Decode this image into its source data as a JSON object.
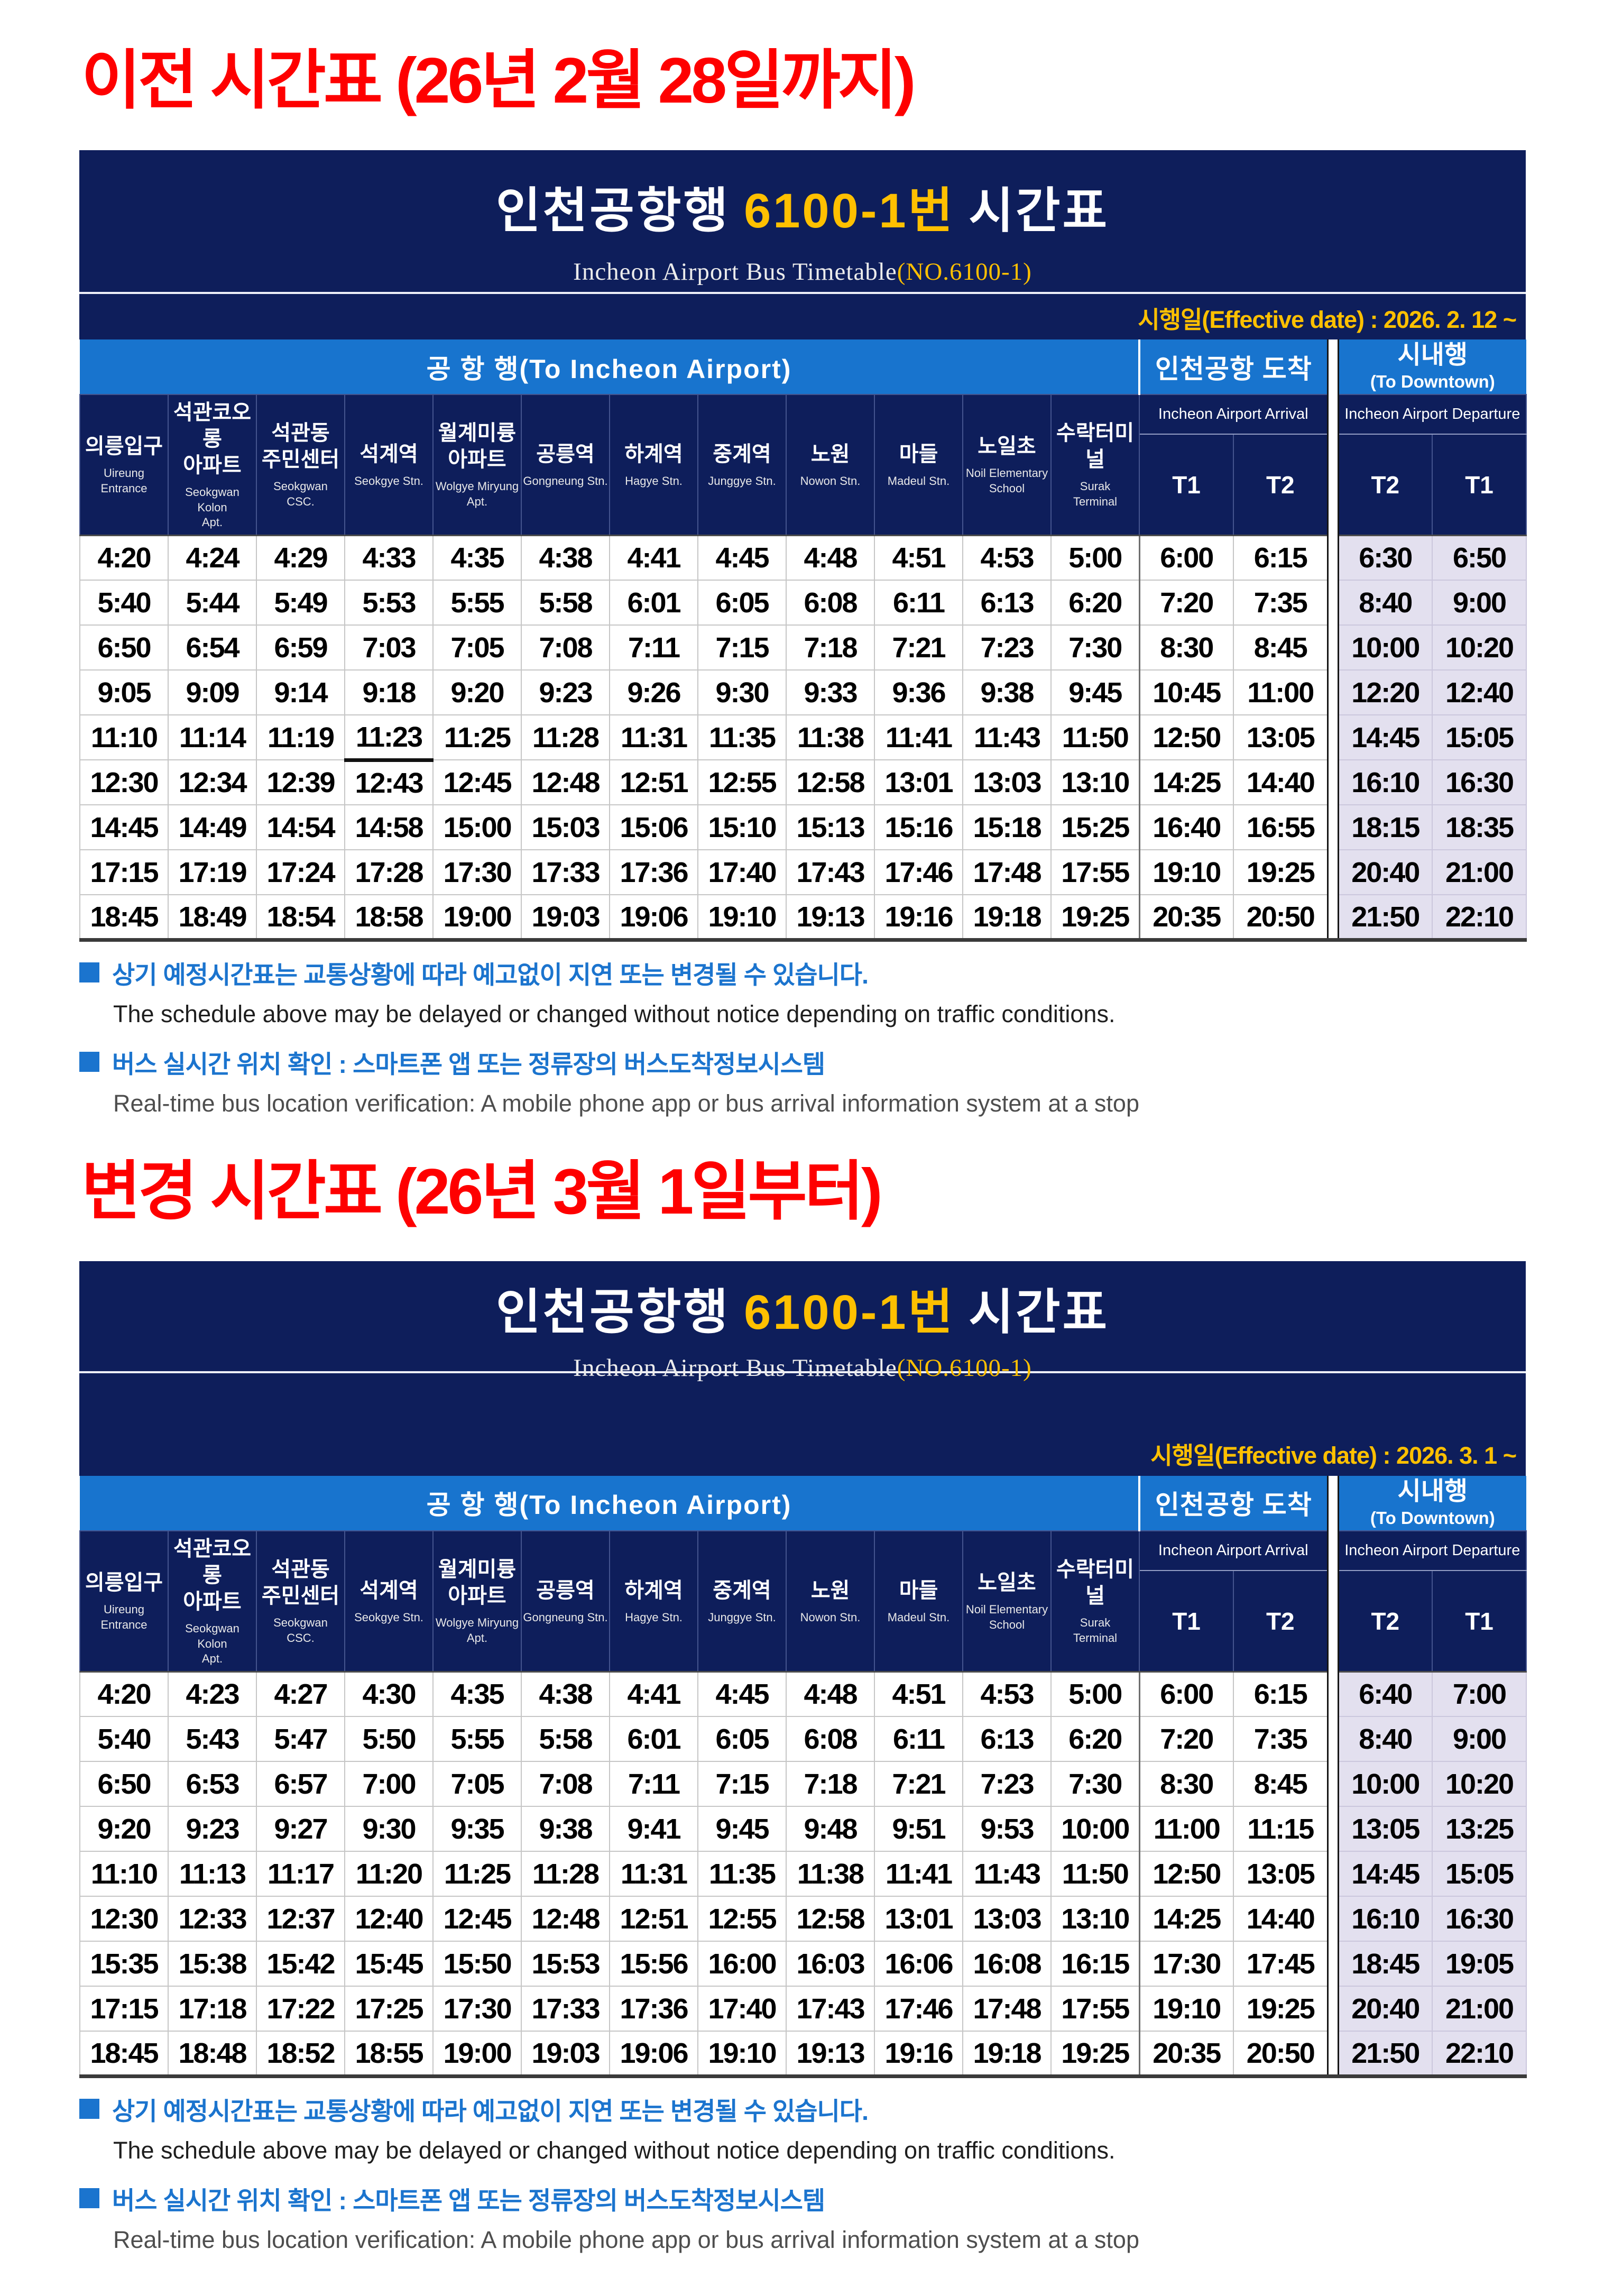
{
  "colors": {
    "navy_header": "#0e1e5b",
    "blue_band": "#1874ce",
    "accent_gold": "#ffc000",
    "heading_red": "#fe0000",
    "departure_cell_lavender": "#e3e0ef",
    "note_blue": "#1b74ce"
  },
  "sections": [
    {
      "heading": "이전 시간표 (26년 2월 28일까지)",
      "table": {
        "title_prefix": "인천공항행",
        "title_route": "6100-1번",
        "title_suffix": "시간표",
        "subtitle_text": "Incheon Airport Bus Timetable",
        "subtitle_route": "(NO.6100-1)",
        "effective_date": "시행일(Effective date) : 2026. 2. 12 ~",
        "group_airport": "공 항 행(To Incheon Airport)",
        "group_arrival": "인천공항 도착",
        "group_downtown_kr": "시내행",
        "group_downtown_en": "(To Downtown)",
        "arrival_label": "Incheon Airport Arrival",
        "departure_label": "Incheon Airport Departure",
        "arrival_terminals": [
          "T1",
          "T2"
        ],
        "departure_terminals": [
          "T2",
          "T1"
        ],
        "stations": [
          {
            "kr": "의릉입구",
            "en": "Uireung Entrance"
          },
          {
            "kr": "석관코오롱\n아파트",
            "en": "Seokgwan Kolon\nApt."
          },
          {
            "kr": "석관동\n주민센터",
            "en": "Seokgwan CSC."
          },
          {
            "kr": "석계역",
            "en": "Seokgye Stn."
          },
          {
            "kr": "월계미륭\n아파트",
            "en": "Wolgye Miryung\nApt."
          },
          {
            "kr": "공릉역",
            "en": "Gongneung Stn."
          },
          {
            "kr": "하계역",
            "en": "Hagye Stn."
          },
          {
            "kr": "중계역",
            "en": "Junggye Stn."
          },
          {
            "kr": "노원",
            "en": "Nowon Stn."
          },
          {
            "kr": "마들",
            "en": "Madeul Stn."
          },
          {
            "kr": "노일초",
            "en": "Noil Elementary\nSchool"
          },
          {
            "kr": "수락터미널",
            "en": "Surak\nTerminal"
          }
        ],
        "underline_cell": {
          "row": 4,
          "col": 3
        },
        "rows": [
          [
            "4:20",
            "4:24",
            "4:29",
            "4:33",
            "4:35",
            "4:38",
            "4:41",
            "4:45",
            "4:48",
            "4:51",
            "4:53",
            "5:00",
            "6:00",
            "6:15",
            "6:30",
            "6:50"
          ],
          [
            "5:40",
            "5:44",
            "5:49",
            "5:53",
            "5:55",
            "5:58",
            "6:01",
            "6:05",
            "6:08",
            "6:11",
            "6:13",
            "6:20",
            "7:20",
            "7:35",
            "8:40",
            "9:00"
          ],
          [
            "6:50",
            "6:54",
            "6:59",
            "7:03",
            "7:05",
            "7:08",
            "7:11",
            "7:15",
            "7:18",
            "7:21",
            "7:23",
            "7:30",
            "8:30",
            "8:45",
            "10:00",
            "10:20"
          ],
          [
            "9:05",
            "9:09",
            "9:14",
            "9:18",
            "9:20",
            "9:23",
            "9:26",
            "9:30",
            "9:33",
            "9:36",
            "9:38",
            "9:45",
            "10:45",
            "11:00",
            "12:20",
            "12:40"
          ],
          [
            "11:10",
            "11:14",
            "11:19",
            "11:23",
            "11:25",
            "11:28",
            "11:31",
            "11:35",
            "11:38",
            "11:41",
            "11:43",
            "11:50",
            "12:50",
            "13:05",
            "14:45",
            "15:05"
          ],
          [
            "12:30",
            "12:34",
            "12:39",
            "12:43",
            "12:45",
            "12:48",
            "12:51",
            "12:55",
            "12:58",
            "13:01",
            "13:03",
            "13:10",
            "14:25",
            "14:40",
            "16:10",
            "16:30"
          ],
          [
            "14:45",
            "14:49",
            "14:54",
            "14:58",
            "15:00",
            "15:03",
            "15:06",
            "15:10",
            "15:13",
            "15:16",
            "15:18",
            "15:25",
            "16:40",
            "16:55",
            "18:15",
            "18:35"
          ],
          [
            "17:15",
            "17:19",
            "17:24",
            "17:28",
            "17:30",
            "17:33",
            "17:36",
            "17:40",
            "17:43",
            "17:46",
            "17:48",
            "17:55",
            "19:10",
            "19:25",
            "20:40",
            "21:00"
          ],
          [
            "18:45",
            "18:49",
            "18:54",
            "18:58",
            "19:00",
            "19:03",
            "19:06",
            "19:10",
            "19:13",
            "19:16",
            "19:18",
            "19:25",
            "20:35",
            "20:50",
            "21:50",
            "22:10"
          ]
        ]
      },
      "notes": [
        {
          "bullet": "■",
          "text": "상기 예정시간표는 교통상황에 따라 예고없이 지연 또는 변경될 수 있습니다.",
          "color": "blue"
        },
        {
          "text": "The schedule above may be delayed or changed without notice depending on traffic conditions.",
          "color": "dark"
        },
        {
          "bullet": "■",
          "text": "버스 실시간 위치 확인 : 스마트폰 앱 또는 정류장의 버스도착정보시스템",
          "color": "blue"
        },
        {
          "text": "Real-time bus location verification: A mobile phone app or bus arrival information system at a stop",
          "color": "gray"
        }
      ]
    },
    {
      "heading": "변경 시간표 (26년 3월 1일부터)",
      "table": {
        "title_prefix": "인천공항행",
        "title_route": "6100-1번",
        "title_suffix": "시간표",
        "subtitle_text": "Incheon Airport Bus Timetable",
        "subtitle_route": "(NO.6100-1)",
        "effective_date": "시행일(Effective date) : 2026. 3. 1 ~",
        "group_airport": "공 항 행(To Incheon Airport)",
        "group_arrival": "인천공항 도착",
        "group_downtown_kr": "시내행",
        "group_downtown_en": "(To Downtown)",
        "arrival_label": "Incheon Airport Arrival",
        "departure_label": "Incheon Airport Departure",
        "arrival_terminals": [
          "T1",
          "T2"
        ],
        "departure_terminals": [
          "T2",
          "T1"
        ],
        "stations": [
          {
            "kr": "의릉입구",
            "en": "Uireung Entrance"
          },
          {
            "kr": "석관코오롱\n아파트",
            "en": "Seokgwan Kolon\nApt."
          },
          {
            "kr": "석관동\n주민센터",
            "en": "Seokgwan CSC."
          },
          {
            "kr": "석계역",
            "en": "Seokgye Stn."
          },
          {
            "kr": "월계미륭\n아파트",
            "en": "Wolgye Miryung\nApt."
          },
          {
            "kr": "공릉역",
            "en": "Gongneung Stn."
          },
          {
            "kr": "하계역",
            "en": "Hagye Stn."
          },
          {
            "kr": "중계역",
            "en": "Junggye Stn."
          },
          {
            "kr": "노원",
            "en": "Nowon Stn."
          },
          {
            "kr": "마들",
            "en": "Madeul Stn."
          },
          {
            "kr": "노일초",
            "en": "Noil Elementary\nSchool"
          },
          {
            "kr": "수락터미널",
            "en": "Surak\nTerminal"
          }
        ],
        "underline_cell": null,
        "rows": [
          [
            "4:20",
            "4:23",
            "4:27",
            "4:30",
            "4:35",
            "4:38",
            "4:41",
            "4:45",
            "4:48",
            "4:51",
            "4:53",
            "5:00",
            "6:00",
            "6:15",
            "6:40",
            "7:00"
          ],
          [
            "5:40",
            "5:43",
            "5:47",
            "5:50",
            "5:55",
            "5:58",
            "6:01",
            "6:05",
            "6:08",
            "6:11",
            "6:13",
            "6:20",
            "7:20",
            "7:35",
            "8:40",
            "9:00"
          ],
          [
            "6:50",
            "6:53",
            "6:57",
            "7:00",
            "7:05",
            "7:08",
            "7:11",
            "7:15",
            "7:18",
            "7:21",
            "7:23",
            "7:30",
            "8:30",
            "8:45",
            "10:00",
            "10:20"
          ],
          [
            "9:20",
            "9:23",
            "9:27",
            "9:30",
            "9:35",
            "9:38",
            "9:41",
            "9:45",
            "9:48",
            "9:51",
            "9:53",
            "10:00",
            "11:00",
            "11:15",
            "13:05",
            "13:25"
          ],
          [
            "11:10",
            "11:13",
            "11:17",
            "11:20",
            "11:25",
            "11:28",
            "11:31",
            "11:35",
            "11:38",
            "11:41",
            "11:43",
            "11:50",
            "12:50",
            "13:05",
            "14:45",
            "15:05"
          ],
          [
            "12:30",
            "12:33",
            "12:37",
            "12:40",
            "12:45",
            "12:48",
            "12:51",
            "12:55",
            "12:58",
            "13:01",
            "13:03",
            "13:10",
            "14:25",
            "14:40",
            "16:10",
            "16:30"
          ],
          [
            "15:35",
            "15:38",
            "15:42",
            "15:45",
            "15:50",
            "15:53",
            "15:56",
            "16:00",
            "16:03",
            "16:06",
            "16:08",
            "16:15",
            "17:30",
            "17:45",
            "18:45",
            "19:05"
          ],
          [
            "17:15",
            "17:18",
            "17:22",
            "17:25",
            "17:30",
            "17:33",
            "17:36",
            "17:40",
            "17:43",
            "17:46",
            "17:48",
            "17:55",
            "19:10",
            "19:25",
            "20:40",
            "21:00"
          ],
          [
            "18:45",
            "18:48",
            "18:52",
            "18:55",
            "19:00",
            "19:03",
            "19:06",
            "19:10",
            "19:13",
            "19:16",
            "19:18",
            "19:25",
            "20:35",
            "20:50",
            "21:50",
            "22:10"
          ]
        ]
      },
      "notes": [
        {
          "bullet": "■",
          "text": "상기 예정시간표는 교통상황에 따라 예고없이 지연 또는 변경될 수 있습니다.",
          "color": "blue"
        },
        {
          "text": "The schedule above may be delayed or changed without notice depending on traffic conditions.",
          "color": "dark"
        },
        {
          "bullet": "■",
          "text": "버스 실시간 위치 확인 : 스마트폰 앱 또는 정류장의 버스도착정보시스템",
          "color": "blue"
        },
        {
          "text": "Real-time bus location verification: A mobile phone app or bus arrival information system at a stop",
          "color": "gray"
        }
      ]
    }
  ]
}
